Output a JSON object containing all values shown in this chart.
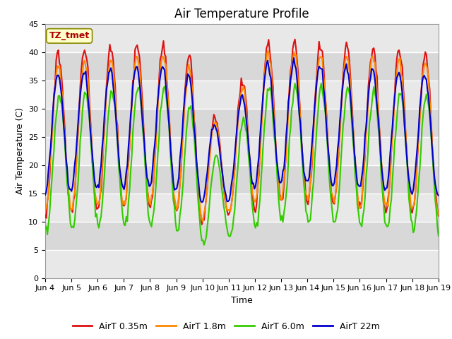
{
  "title": "Air Temperature Profile",
  "xlabel": "Time",
  "ylabel": "Air Temperature (C)",
  "annotation": "TZ_tmet",
  "ylim": [
    0,
    45
  ],
  "xlim_days": [
    4,
    19
  ],
  "x_tick_labels": [
    "Jun 4",
    "Jun 5",
    "Jun 6",
    "Jun 7",
    "Jun 8",
    "Jun 9",
    "Jun 10",
    "Jun 11",
    "Jun 12",
    "Jun 13",
    "Jun 14",
    "Jun 15",
    "Jun 16",
    "Jun 17",
    "Jun 18",
    "Jun 19"
  ],
  "series_colors": [
    "#dd1111",
    "#ff8800",
    "#33cc00",
    "#0000cc"
  ],
  "series_labels": [
    "AirT 0.35m",
    "AirT 1.8m",
    "AirT 6.0m",
    "AirT 22m"
  ],
  "fig_bg_color": "#ffffff",
  "plot_bg_color": "#e8e8e8",
  "grid_color": "#ffffff",
  "title_fontsize": 12,
  "axis_label_fontsize": 9,
  "tick_fontsize": 8,
  "legend_fontsize": 9,
  "line_width": 1.5,
  "annotation_bg": "#ffffcc",
  "annotation_fg": "#aa0000",
  "annotation_border": "#888800"
}
